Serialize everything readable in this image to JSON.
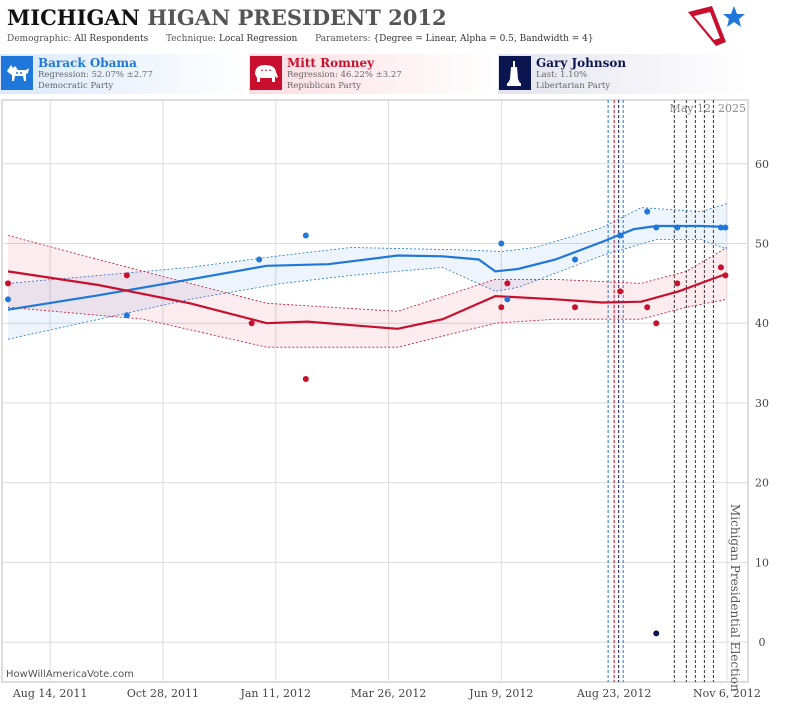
{
  "header": {
    "title_part1": "MICHIGAN",
    "title_part2": "HIGAN PRESIDENT 2012",
    "demographic_label": "Demographic:",
    "demographic_value": "All Respondents",
    "technique_label": "Technique:",
    "technique_value": "Local Regression",
    "parameters_label": "Parameters:",
    "parameters_value": "{Degree = Linear, Alpha = 0.5, Bandwidth = 4}"
  },
  "candidates": [
    {
      "name": "Barack Obama",
      "stat": "Regression: 52.07% ±2.77",
      "party": "Democratic Party",
      "color": "#1f77d9",
      "icon": "donkey-icon"
    },
    {
      "name": "Mitt Romney",
      "stat": "Regression: 46.22% ±3.27",
      "party": "Republican Party",
      "color": "#c8102e",
      "icon": "elephant-icon"
    },
    {
      "name": "Gary Johnson",
      "stat": "Last: 1.10%",
      "party": "Libertarian Party",
      "color": "#0b1650",
      "icon": "liberty-statue-icon"
    }
  ],
  "footer": {
    "source": "HowWillAmericaVote.com"
  },
  "chart_data": {
    "type": "line",
    "date_label": "May 12, 2025",
    "event_label": "Michigan Presidential Election",
    "x_ticks": [
      "2011-08-14",
      "2011-10-28",
      "2012-01-11",
      "2012-03-26",
      "2012-06-09",
      "2012-08-23",
      "2012-11-06"
    ],
    "x_tick_labels": [
      "Aug 14, 2011",
      "Oct 28, 2011",
      "Jan 11, 2012",
      "Mar 26, 2012",
      "Jun 9, 2012",
      "Aug 23, 2012",
      "Nov 6, 2012"
    ],
    "xlim": [
      "2011-07-13",
      "2012-11-20"
    ],
    "ylim": [
      -5,
      68
    ],
    "y_ticks": [
      0,
      10,
      20,
      30,
      40,
      50,
      60
    ],
    "grid": true,
    "event_date": "2012-11-06",
    "vlines": [
      {
        "date": "2012-08-19",
        "color": "#1f77d9"
      },
      {
        "date": "2012-08-23",
        "color": "#c8102e"
      },
      {
        "date": "2012-08-26",
        "color": "#0b1650"
      },
      {
        "date": "2012-08-29",
        "color": "#1f77d9"
      },
      {
        "date": "2012-10-02",
        "color": "#333333"
      },
      {
        "date": "2012-10-10",
        "color": "#333333"
      },
      {
        "date": "2012-10-16",
        "color": "#333333"
      },
      {
        "date": "2012-10-22",
        "color": "#333333"
      },
      {
        "date": "2012-10-28",
        "color": "#333333"
      }
    ],
    "series": [
      {
        "name": "Barack Obama",
        "color": "#1f77d9",
        "points": [
          {
            "x": "2011-07-17",
            "y": 43
          },
          {
            "x": "2011-10-04",
            "y": 41
          },
          {
            "x": "2011-12-31",
            "y": 48
          },
          {
            "x": "2012-01-31",
            "y": 51
          },
          {
            "x": "2012-06-09",
            "y": 50
          },
          {
            "x": "2012-06-13",
            "y": 43
          },
          {
            "x": "2012-07-28",
            "y": 48
          },
          {
            "x": "2012-08-27",
            "y": 51
          },
          {
            "x": "2012-09-14",
            "y": 54
          },
          {
            "x": "2012-09-20",
            "y": 52
          },
          {
            "x": "2012-10-04",
            "y": 52
          },
          {
            "x": "2012-11-02",
            "y": 52
          },
          {
            "x": "2012-11-05",
            "y": 52
          }
        ],
        "trend": [
          {
            "x": "2011-07-17",
            "y": 41.7
          },
          {
            "x": "2011-09-15",
            "y": 43.5
          },
          {
            "x": "2011-11-15",
            "y": 45.5
          },
          {
            "x": "2012-01-05",
            "y": 47.2
          },
          {
            "x": "2012-02-15",
            "y": 47.4
          },
          {
            "x": "2012-04-01",
            "y": 48.5
          },
          {
            "x": "2012-05-01",
            "y": 48.4
          },
          {
            "x": "2012-05-25",
            "y": 48.0
          },
          {
            "x": "2012-06-05",
            "y": 46.5
          },
          {
            "x": "2012-06-20",
            "y": 46.8
          },
          {
            "x": "2012-07-15",
            "y": 48.0
          },
          {
            "x": "2012-08-15",
            "y": 50.2
          },
          {
            "x": "2012-09-05",
            "y": 51.8
          },
          {
            "x": "2012-09-20",
            "y": 52.2
          },
          {
            "x": "2012-10-20",
            "y": 52.2
          },
          {
            "x": "2012-11-06",
            "y": 52.07
          }
        ],
        "band_upper": [
          {
            "x": "2011-07-17",
            "y": 45.0
          },
          {
            "x": "2011-11-15",
            "y": 47.0
          },
          {
            "x": "2012-01-15",
            "y": 48.5
          },
          {
            "x": "2012-03-01",
            "y": 49.5
          },
          {
            "x": "2012-05-15",
            "y": 49.2
          },
          {
            "x": "2012-06-09",
            "y": 49.0
          },
          {
            "x": "2012-07-01",
            "y": 49.5
          },
          {
            "x": "2012-08-15",
            "y": 52.0
          },
          {
            "x": "2012-09-10",
            "y": 54.5
          },
          {
            "x": "2012-10-20",
            "y": 54.0
          },
          {
            "x": "2012-11-06",
            "y": 55.0
          }
        ],
        "band_lower": [
          {
            "x": "2011-07-17",
            "y": 38.0
          },
          {
            "x": "2011-11-15",
            "y": 43.0
          },
          {
            "x": "2012-01-15",
            "y": 45.0
          },
          {
            "x": "2012-03-01",
            "y": 46.0
          },
          {
            "x": "2012-05-01",
            "y": 47.0
          },
          {
            "x": "2012-06-05",
            "y": 44.0
          },
          {
            "x": "2012-06-20",
            "y": 44.5
          },
          {
            "x": "2012-08-15",
            "y": 48.5
          },
          {
            "x": "2012-09-20",
            "y": 50.5
          },
          {
            "x": "2012-10-20",
            "y": 50.5
          },
          {
            "x": "2012-11-06",
            "y": 49.3
          }
        ]
      },
      {
        "name": "Mitt Romney",
        "color": "#c8102e",
        "points": [
          {
            "x": "2011-07-17",
            "y": 45
          },
          {
            "x": "2011-10-04",
            "y": 46
          },
          {
            "x": "2011-12-26",
            "y": 40
          },
          {
            "x": "2012-01-31",
            "y": 33
          },
          {
            "x": "2012-06-09",
            "y": 42
          },
          {
            "x": "2012-06-13",
            "y": 45
          },
          {
            "x": "2012-07-28",
            "y": 42
          },
          {
            "x": "2012-08-27",
            "y": 44
          },
          {
            "x": "2012-09-14",
            "y": 42
          },
          {
            "x": "2012-09-20",
            "y": 40
          },
          {
            "x": "2012-10-04",
            "y": 45
          },
          {
            "x": "2012-11-02",
            "y": 47
          },
          {
            "x": "2012-11-05",
            "y": 46
          }
        ],
        "trend": [
          {
            "x": "2011-07-17",
            "y": 46.5
          },
          {
            "x": "2011-09-15",
            "y": 44.8
          },
          {
            "x": "2011-11-15",
            "y": 42.5
          },
          {
            "x": "2012-01-05",
            "y": 40.0
          },
          {
            "x": "2012-02-01",
            "y": 40.2
          },
          {
            "x": "2012-04-01",
            "y": 39.3
          },
          {
            "x": "2012-05-01",
            "y": 40.5
          },
          {
            "x": "2012-06-05",
            "y": 43.4
          },
          {
            "x": "2012-07-15",
            "y": 43.0
          },
          {
            "x": "2012-08-15",
            "y": 42.6
          },
          {
            "x": "2012-09-10",
            "y": 42.7
          },
          {
            "x": "2012-10-05",
            "y": 44.0
          },
          {
            "x": "2012-11-06",
            "y": 46.22
          }
        ],
        "band_upper": [
          {
            "x": "2011-07-17",
            "y": 51.0
          },
          {
            "x": "2011-10-15",
            "y": 46.5
          },
          {
            "x": "2012-01-05",
            "y": 42.5
          },
          {
            "x": "2012-04-01",
            "y": 41.5
          },
          {
            "x": "2012-06-05",
            "y": 45.5
          },
          {
            "x": "2012-07-15",
            "y": 45.5
          },
          {
            "x": "2012-09-10",
            "y": 45.0
          },
          {
            "x": "2012-10-10",
            "y": 46.5
          },
          {
            "x": "2012-11-06",
            "y": 49.5
          }
        ],
        "band_lower": [
          {
            "x": "2011-07-17",
            "y": 42.0
          },
          {
            "x": "2011-10-15",
            "y": 40.5
          },
          {
            "x": "2012-01-05",
            "y": 37.0
          },
          {
            "x": "2012-04-01",
            "y": 37.0
          },
          {
            "x": "2012-06-05",
            "y": 40.0
          },
          {
            "x": "2012-07-15",
            "y": 40.5
          },
          {
            "x": "2012-09-10",
            "y": 40.5
          },
          {
            "x": "2012-10-10",
            "y": 42.0
          },
          {
            "x": "2012-11-06",
            "y": 43.0
          }
        ]
      },
      {
        "name": "Gary Johnson",
        "color": "#0b1650",
        "points": [
          {
            "x": "2012-09-20",
            "y": 1.1
          }
        ]
      }
    ]
  }
}
